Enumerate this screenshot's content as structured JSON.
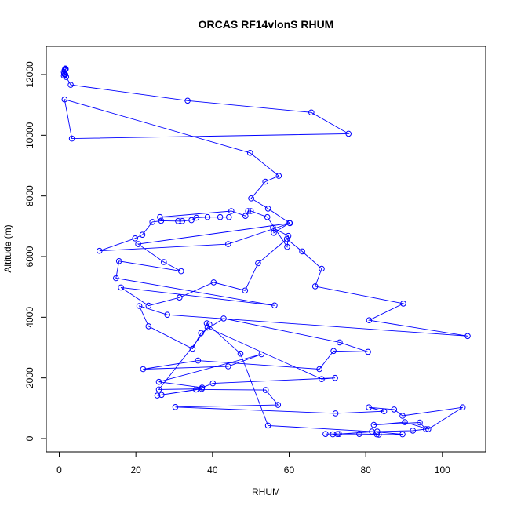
{
  "chart_data": {
    "type": "line",
    "title": "ORCAS RF14vlonS RHUM",
    "xlabel": "RHUM",
    "ylabel": "Altitude (m)",
    "xlim": [
      0,
      107
    ],
    "ylim": [
      0,
      12200
    ],
    "x_ticks": [
      0,
      20,
      40,
      60,
      80,
      100
    ],
    "y_ticks": [
      0,
      2000,
      4000,
      6000,
      8000,
      10000,
      12000
    ],
    "grid": false,
    "line_color": "#0000ff",
    "marker": "open-circle",
    "series": [
      {
        "x": [
          1.5,
          1.6,
          1.4,
          1.7,
          1.2,
          1.3,
          1.6,
          1.5,
          1.2,
          1.8,
          3,
          33.5,
          65.8,
          75.5,
          3.3,
          1.4,
          49.8,
          57.3,
          53.8,
          50.1,
          54.5,
          60.1,
          56,
          55.8,
          59.8,
          59.5,
          54.3,
          50,
          49.3,
          48.6,
          44.9,
          26.3,
          42,
          44.3,
          38.7,
          35.8,
          34.5,
          32.1,
          31,
          26.6,
          24.3,
          21.7,
          19.8,
          10.5,
          44.1,
          60.2,
          20.6,
          27.3,
          31.8,
          15.6,
          14.8,
          56.2,
          16.1,
          23.3,
          31.4,
          40.3,
          48.5,
          51.9,
          59.4,
          63.4,
          68.5,
          66.8,
          89.8,
          80.9,
          106.6,
          28.2,
          20.9,
          23.3,
          34.8,
          37,
          42.9,
          73.2,
          80.6,
          71.6,
          67.9,
          36.2,
          21.9,
          44.1,
          52.8,
          26,
          37.3,
          40.1,
          72,
          68.5,
          38.7,
          26,
          37.2,
          26.7,
          25.6,
          35.7,
          53.9,
          57.1,
          30.3,
          72.1,
          84.8,
          80.8,
          87.4,
          89.6,
          105.3,
          96.3,
          90.2,
          82.1,
          94.1,
          95.7,
          92.3,
          83,
          73,
          71.4,
          72.6,
          69.5,
          78.3,
          82.9,
          83.4,
          89.6,
          81.6,
          54.5,
          47.3,
          38.5,
          39.2
        ]
      }
    ],
    "y_series": [
      12160,
      12200,
      12140,
      12180,
      12080,
      12020,
      12000,
      11990,
      11960,
      11920,
      11660,
      11140,
      10750,
      10050,
      9890,
      11180,
      9420,
      8660,
      8470,
      7920,
      7580,
      7110,
      6780,
      6950,
      6680,
      6320,
      7300,
      7500,
      7500,
      7340,
      7500,
      7300,
      7300,
      7300,
      7300,
      7280,
      7200,
      7170,
      7170,
      7180,
      7140,
      6720,
      6600,
      6190,
      6410,
      7100,
      6410,
      5820,
      5520,
      5850,
      5290,
      4390,
      4980,
      4380,
      4650,
      5150,
      4880,
      5780,
      6580,
      6170,
      5600,
      5020,
      4450,
      3900,
      3380,
      4080,
      4370,
      3700,
      2960,
      3480,
      3960,
      3170,
      2860,
      2890,
      2290,
      2570,
      2290,
      2380,
      2780,
      1870,
      1680,
      1820,
      2000,
      1960,
      3660,
      1620,
      1640,
      1440,
      1420,
      1620,
      1600,
      1110,
      1040,
      830,
      900,
      1030,
      960,
      750,
      1030,
      310,
      540,
      450,
      530,
      310,
      260,
      230,
      150,
      140,
      150,
      150,
      150,
      140,
      130,
      140,
      230,
      430,
      2800,
      3800,
      3760
    ]
  }
}
